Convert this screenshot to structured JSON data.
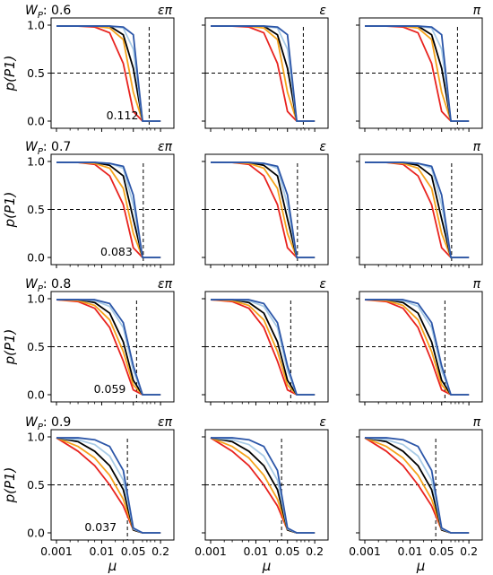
{
  "figure": {
    "y_axis_label": "p(P1)",
    "x_axis_label": "μ"
  },
  "chart_data": {
    "type": "line",
    "x_tick_labels": [
      "0.001",
      "0.01",
      "0.05",
      "0.2"
    ],
    "x_scale": "log",
    "y_ticks": [
      0.0,
      0.5,
      1.0
    ],
    "y_tick_labels": [
      "0.0",
      "0.5",
      "1.0"
    ],
    "ylim": [
      0,
      1
    ],
    "grid": false,
    "series_colors": [
      "#e8231f",
      "#f5a31c",
      "#000000",
      "#a9cbe6",
      "#2c56a8"
    ],
    "dashed_threshold_y": 0.5,
    "column_labels": [
      "επ",
      "ε",
      "π"
    ],
    "rows": [
      {
        "wp_label": "W",
        "wp_sub": "P",
        "wp_value": ": 0.6",
        "threshold_mu": 0.112,
        "threshold_label": "0.112",
        "mu": [
          0.001,
          0.003,
          0.007,
          0.015,
          0.03,
          0.05,
          0.08,
          0.12,
          0.2
        ],
        "series": [
          {
            "values": [
              0.99,
              0.99,
              0.98,
              0.92,
              0.6,
              0.1,
              0.0,
              0.0,
              0.0
            ]
          },
          {
            "values": [
              0.99,
              0.99,
              0.99,
              0.97,
              0.85,
              0.3,
              0.0,
              0.0,
              0.0
            ]
          },
          {
            "values": [
              0.99,
              0.99,
              0.99,
              0.99,
              0.9,
              0.55,
              0.0,
              0.0,
              0.0
            ]
          },
          {
            "values": [
              0.99,
              0.99,
              0.99,
              0.99,
              0.97,
              0.75,
              0.0,
              0.0,
              0.0
            ]
          },
          {
            "values": [
              0.99,
              0.99,
              0.99,
              0.99,
              0.98,
              0.9,
              0.0,
              0.0,
              0.0
            ]
          }
        ]
      },
      {
        "wp_label": "W",
        "wp_sub": "P",
        "wp_value": ": 0.7",
        "threshold_mu": 0.083,
        "threshold_label": "0.083",
        "mu": [
          0.001,
          0.003,
          0.007,
          0.015,
          0.03,
          0.05,
          0.08,
          0.12,
          0.2
        ],
        "series": [
          {
            "values": [
              0.99,
              0.99,
              0.97,
              0.85,
              0.55,
              0.1,
              0.0,
              0.0,
              0.0
            ]
          },
          {
            "values": [
              0.99,
              0.99,
              0.98,
              0.93,
              0.72,
              0.25,
              0.0,
              0.0,
              0.0
            ]
          },
          {
            "values": [
              0.99,
              0.99,
              0.99,
              0.96,
              0.85,
              0.4,
              0.0,
              0.0,
              0.0
            ]
          },
          {
            "values": [
              0.99,
              0.99,
              0.99,
              0.98,
              0.93,
              0.55,
              0.0,
              0.0,
              0.0
            ]
          },
          {
            "values": [
              0.99,
              0.99,
              0.99,
              0.98,
              0.95,
              0.65,
              0.0,
              0.0,
              0.0
            ]
          }
        ]
      },
      {
        "wp_label": "W",
        "wp_sub": "P",
        "wp_value": ": 0.8",
        "threshold_mu": 0.059,
        "threshold_label": "0.059",
        "mu": [
          0.001,
          0.003,
          0.007,
          0.015,
          0.03,
          0.05,
          0.08,
          0.12,
          0.2
        ],
        "series": [
          {
            "values": [
              0.99,
              0.97,
              0.9,
              0.7,
              0.35,
              0.05,
              0.0,
              0.0,
              0.0
            ]
          },
          {
            "values": [
              0.99,
              0.98,
              0.93,
              0.78,
              0.45,
              0.1,
              0.0,
              0.0,
              0.0
            ]
          },
          {
            "values": [
              0.99,
              0.99,
              0.96,
              0.85,
              0.55,
              0.15,
              0.0,
              0.0,
              0.0
            ]
          },
          {
            "values": [
              0.99,
              0.99,
              0.98,
              0.92,
              0.7,
              0.25,
              0.0,
              0.0,
              0.0
            ]
          },
          {
            "values": [
              0.99,
              0.99,
              0.99,
              0.95,
              0.75,
              0.3,
              0.0,
              0.0,
              0.0
            ]
          }
        ]
      },
      {
        "wp_label": "W",
        "wp_sub": "P",
        "wp_value": ": 0.9",
        "threshold_mu": 0.037,
        "threshold_label": "0.037",
        "mu": [
          0.001,
          0.003,
          0.007,
          0.015,
          0.03,
          0.05,
          0.08,
          0.12,
          0.2
        ],
        "series": [
          {
            "values": [
              0.99,
              0.85,
              0.7,
              0.5,
              0.28,
              0.03,
              0.0,
              0.0,
              0.0
            ]
          },
          {
            "values": [
              0.99,
              0.9,
              0.78,
              0.6,
              0.35,
              0.03,
              0.0,
              0.0,
              0.0
            ]
          },
          {
            "values": [
              0.99,
              0.95,
              0.85,
              0.7,
              0.45,
              0.03,
              0.0,
              0.0,
              0.0
            ]
          },
          {
            "values": [
              0.99,
              0.97,
              0.92,
              0.8,
              0.55,
              0.04,
              0.0,
              0.0,
              0.0
            ]
          },
          {
            "values": [
              0.99,
              0.99,
              0.97,
              0.9,
              0.65,
              0.05,
              0.0,
              0.0,
              0.0
            ]
          }
        ]
      }
    ]
  }
}
